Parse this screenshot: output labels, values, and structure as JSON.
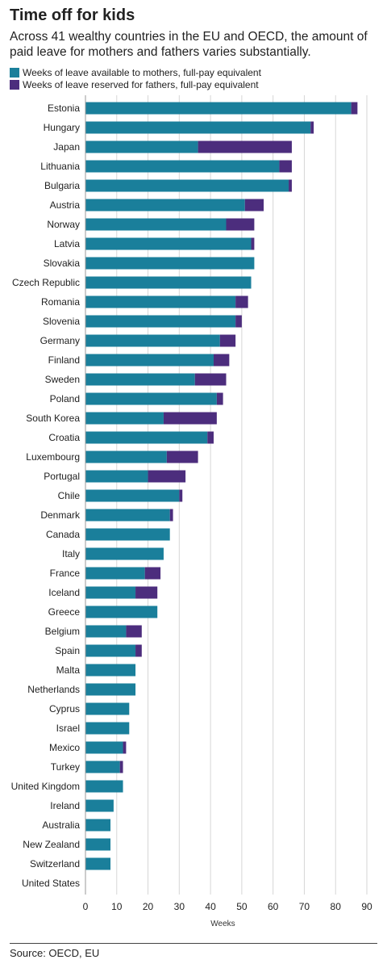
{
  "title": "Time off for kids",
  "subtitle": "Across 41 wealthy countries in the EU and OECD, the amount of paid leave for mothers and fathers varies substantially.",
  "source": "Source: OECD, EU",
  "colors": {
    "mothers": "#1a7f9b",
    "fathers": "#4c2d7d",
    "grid": "#d6d6d6"
  },
  "chart_data": {
    "type": "bar",
    "orientation": "horizontal",
    "stacked": true,
    "xlabel": "Weeks",
    "xlim": [
      0,
      90
    ],
    "xticks": [
      0,
      10,
      20,
      30,
      40,
      50,
      60,
      70,
      80,
      90
    ],
    "grid": "vertical",
    "legend_position": "top-left",
    "categories": [
      "Estonia",
      "Hungary",
      "Japan",
      "Lithuania",
      "Bulgaria",
      "Austria",
      "Norway",
      "Latvia",
      "Slovakia",
      "Czech Republic",
      "Romania",
      "Slovenia",
      "Germany",
      "Finland",
      "Sweden",
      "Poland",
      "South Korea",
      "Croatia",
      "Luxembourg",
      "Portugal",
      "Chile",
      "Denmark",
      "Canada",
      "Italy",
      "France",
      "Iceland",
      "Greece",
      "Belgium",
      "Spain",
      "Malta",
      "Netherlands",
      "Cyprus",
      "Israel",
      "Mexico",
      "Turkey",
      "United Kingdom",
      "Ireland",
      "Australia",
      "New Zealand",
      "Switzerland",
      "United States"
    ],
    "series": [
      {
        "name": "Weeks of leave available to mothers, full-pay equivalent",
        "values": [
          85,
          72,
          36,
          62,
          65,
          51,
          45,
          53,
          54,
          53,
          48,
          48,
          43,
          41,
          35,
          42,
          25,
          39,
          26,
          20,
          30,
          27,
          27,
          25,
          19,
          16,
          23,
          13,
          16,
          16,
          16,
          14,
          14,
          12,
          11,
          12,
          9,
          8,
          8,
          8,
          0
        ]
      },
      {
        "name": "Weeks of leave reserved for fathers, full-pay equivalent",
        "values": [
          2,
          1,
          30,
          4,
          1,
          6,
          9,
          1,
          0,
          0,
          4,
          2,
          5,
          5,
          10,
          2,
          17,
          2,
          10,
          12,
          1,
          1,
          0,
          0,
          5,
          7,
          0,
          5,
          2,
          0,
          0,
          0,
          0,
          1,
          1,
          0,
          0,
          0,
          0,
          0,
          0
        ]
      }
    ]
  }
}
